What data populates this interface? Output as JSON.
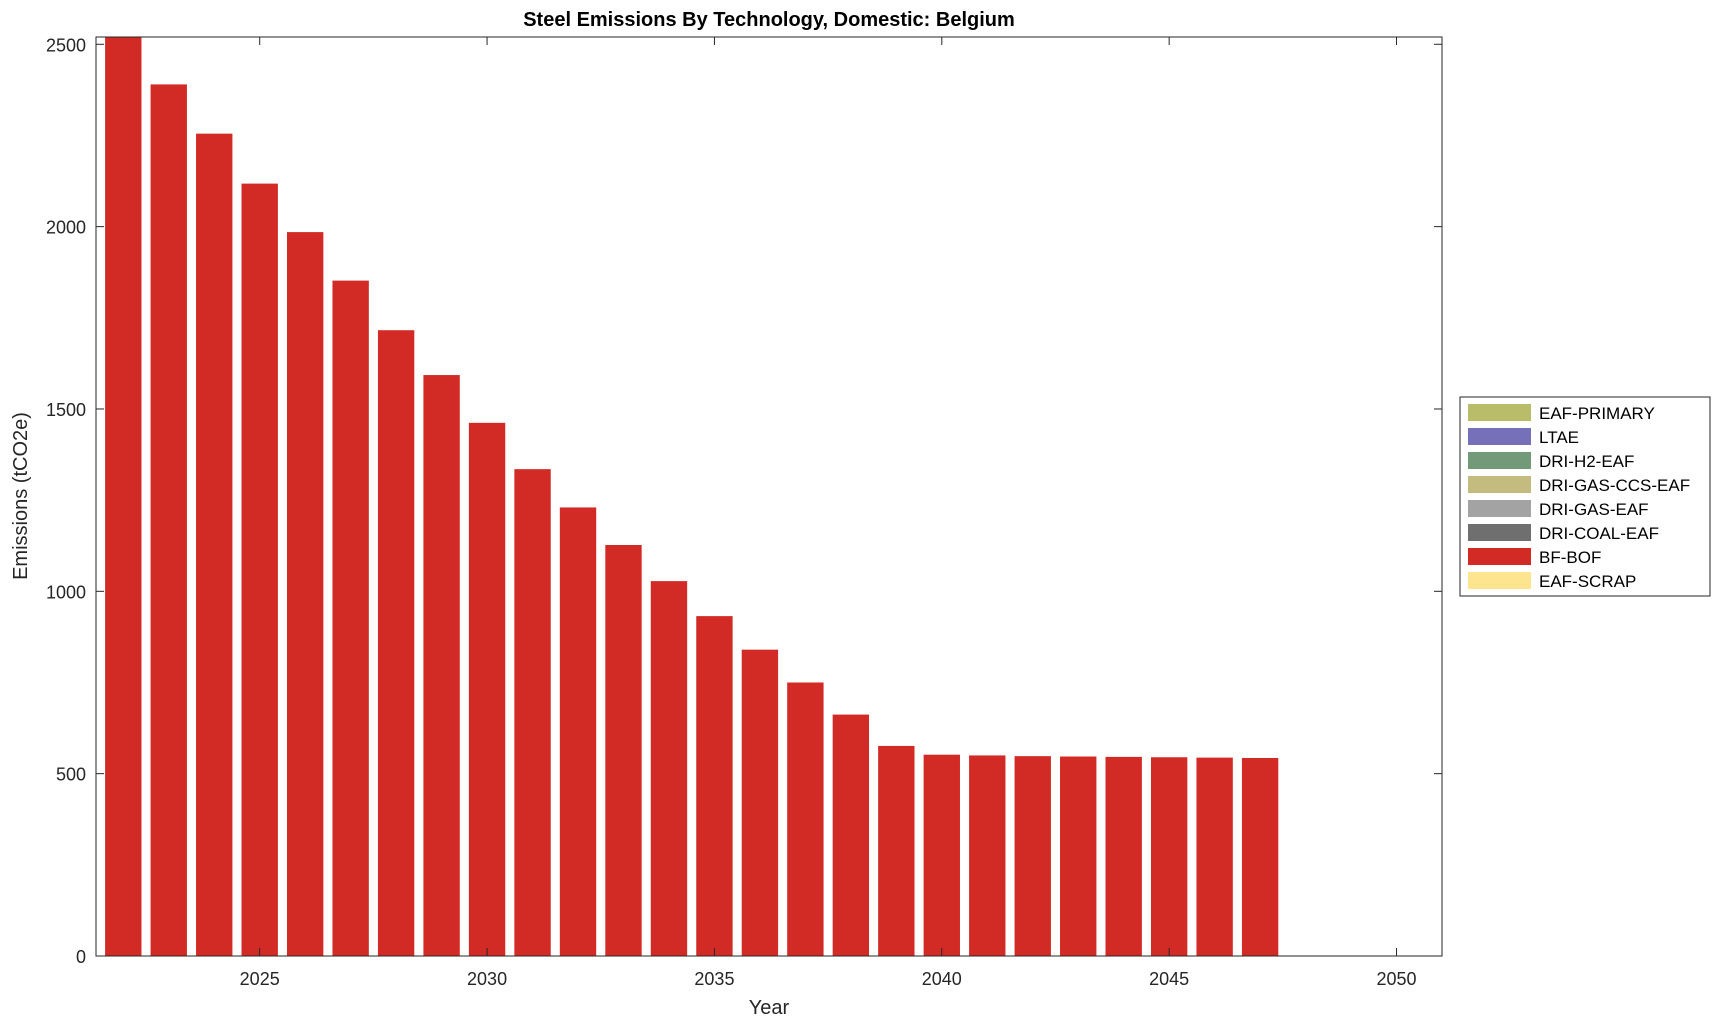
{
  "chart_data": {
    "type": "bar",
    "title": "Steel Emissions By Technology, Domestic: Belgium",
    "xlabel": "Year",
    "ylabel": "Emissions (tCO2e)",
    "xlim": [
      2021.4,
      2051
    ],
    "ylim": [
      0,
      2520
    ],
    "xticks": [
      2025,
      2030,
      2035,
      2040,
      2045,
      2050
    ],
    "yticks": [
      0,
      500,
      1000,
      1500,
      2000,
      2500
    ],
    "grid": false,
    "legend_position": "right",
    "years": [
      2022,
      2023,
      2024,
      2025,
      2026,
      2027,
      2028,
      2029,
      2030,
      2031,
      2032,
      2033,
      2034,
      2035,
      2036,
      2037,
      2038,
      2039,
      2040,
      2041,
      2042,
      2043,
      2044,
      2045,
      2046,
      2047
    ],
    "series": [
      {
        "name": "EAF-PRIMARY",
        "color": "#b9bd69",
        "values": [
          0,
          0,
          0,
          0,
          0,
          0,
          0,
          0,
          0,
          0,
          0,
          0,
          0,
          0,
          0,
          0,
          0,
          0,
          0,
          0,
          0,
          0,
          0,
          0,
          0,
          0
        ]
      },
      {
        "name": "LTAE",
        "color": "#7670bb",
        "values": [
          0,
          0,
          0,
          0,
          0,
          0,
          0,
          0,
          0,
          0,
          0,
          0,
          0,
          0,
          0,
          0,
          0,
          0,
          0,
          0,
          0,
          0,
          0,
          0,
          0,
          0
        ]
      },
      {
        "name": "DRI-H2-EAF",
        "color": "#729a79",
        "values": [
          0,
          0,
          0,
          0,
          0,
          0,
          0,
          0,
          0,
          0,
          0,
          0,
          0,
          0,
          0,
          0,
          0,
          0,
          0,
          0,
          0,
          0,
          0,
          0,
          0,
          0
        ]
      },
      {
        "name": "DRI-GAS-CCS-EAF",
        "color": "#c4bb7e",
        "values": [
          0,
          0,
          0,
          0,
          0,
          0,
          0,
          0,
          0,
          0,
          0,
          0,
          0,
          0,
          0,
          0,
          0,
          0,
          0,
          0,
          0,
          0,
          0,
          0,
          0,
          0
        ]
      },
      {
        "name": "DRI-GAS-EAF",
        "color": "#a3a3a3",
        "values": [
          0,
          0,
          0,
          0,
          0,
          0,
          0,
          0,
          0,
          0,
          0,
          0,
          0,
          0,
          0,
          0,
          0,
          0,
          0,
          0,
          0,
          0,
          0,
          0,
          0,
          0
        ]
      },
      {
        "name": "DRI-COAL-EAF",
        "color": "#6f6f6f",
        "values": [
          0,
          0,
          0,
          0,
          0,
          0,
          0,
          0,
          0,
          0,
          0,
          0,
          0,
          0,
          0,
          0,
          0,
          0,
          0,
          0,
          0,
          0,
          0,
          0,
          0,
          0
        ]
      },
      {
        "name": "BF-BOF",
        "color": "#d22b26",
        "values": [
          2520,
          2390,
          2255,
          2118,
          1985,
          1852,
          1716,
          1593,
          1462,
          1335,
          1230,
          1127,
          1028,
          932,
          840,
          750,
          662,
          576,
          552,
          550,
          548,
          547,
          546,
          545,
          544,
          543
        ]
      },
      {
        "name": "EAF-SCRAP",
        "color": "#fde48f",
        "values": [
          0,
          0,
          0,
          0,
          0,
          0,
          0,
          0,
          0,
          0,
          0,
          0,
          0,
          0,
          0,
          0,
          0,
          0,
          0,
          0,
          0,
          0,
          0,
          0,
          0,
          0
        ]
      }
    ]
  }
}
